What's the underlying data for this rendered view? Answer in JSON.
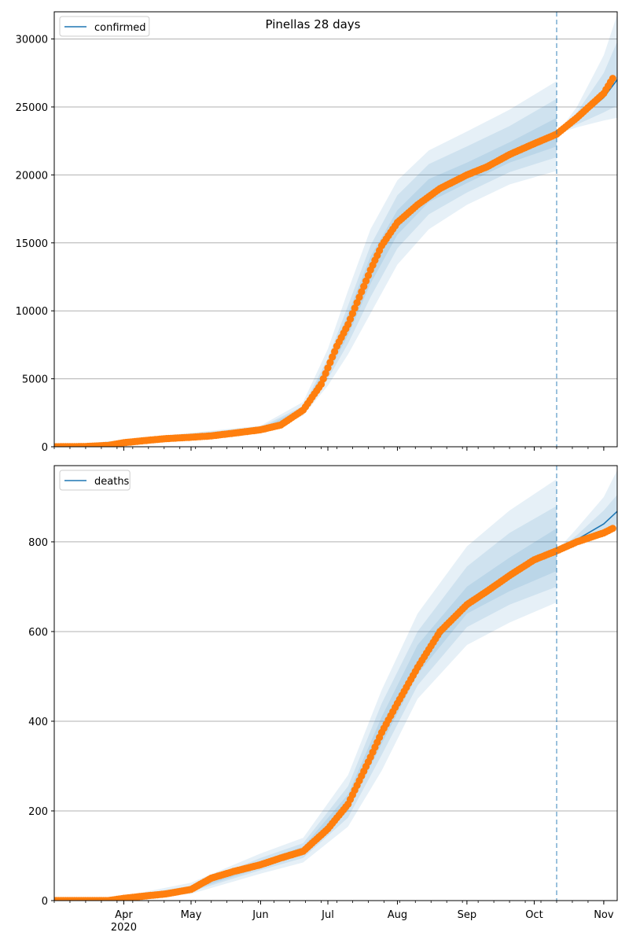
{
  "title": "Pinellas 28 days",
  "colors": {
    "model": "#1f77b4",
    "observed": "#ff7f0e",
    "band": "#1f77b4",
    "grid": "#b0b0b0",
    "marker_line": "#1f77b4"
  },
  "x_axis": {
    "range": [
      "2020-03-01",
      "2020-11-07"
    ],
    "tick_labels": [
      {
        "date": "2020-04-01",
        "label": "Apr",
        "sub": "2020"
      },
      {
        "date": "2020-05-01",
        "label": "May"
      },
      {
        "date": "2020-06-01",
        "label": "Jun"
      },
      {
        "date": "2020-07-01",
        "label": "Jul"
      },
      {
        "date": "2020-08-01",
        "label": "Aug"
      },
      {
        "date": "2020-09-01",
        "label": "Sep"
      },
      {
        "date": "2020-10-01",
        "label": "Oct"
      },
      {
        "date": "2020-11-01",
        "label": "Nov"
      }
    ]
  },
  "chart_data": [
    {
      "type": "line",
      "title": "Pinellas 28 days",
      "legend": [
        "confirmed"
      ],
      "legend_position": "top-left",
      "grid": "horizontal",
      "ylim": [
        0,
        32000
      ],
      "yticks": [
        0,
        5000,
        10000,
        15000,
        20000,
        25000,
        30000
      ],
      "forecast_start": "2020-10-11",
      "observed": {
        "x": [
          "2020-03-01",
          "2020-03-15",
          "2020-03-25",
          "2020-04-01",
          "2020-04-10",
          "2020-04-20",
          "2020-05-01",
          "2020-05-10",
          "2020-05-20",
          "2020-06-01",
          "2020-06-10",
          "2020-06-20",
          "2020-06-28",
          "2020-07-01",
          "2020-07-05",
          "2020-07-10",
          "2020-07-15",
          "2020-07-20",
          "2020-07-25",
          "2020-08-01",
          "2020-08-10",
          "2020-08-20",
          "2020-09-01",
          "2020-09-10",
          "2020-09-20",
          "2020-10-01",
          "2020-10-11",
          "2020-10-20",
          "2020-11-01",
          "2020-11-05"
        ],
        "y": [
          0,
          20,
          100,
          300,
          450,
          600,
          700,
          800,
          1000,
          1250,
          1600,
          2700,
          4600,
          5800,
          7400,
          9000,
          11000,
          13000,
          14800,
          16500,
          17800,
          19000,
          20000,
          20600,
          21500,
          22300,
          23000,
          24200,
          26000,
          27100
        ]
      },
      "model": {
        "x": [
          "2020-03-01",
          "2020-03-15",
          "2020-03-25",
          "2020-04-01",
          "2020-04-10",
          "2020-04-20",
          "2020-05-01",
          "2020-05-10",
          "2020-05-20",
          "2020-06-01",
          "2020-06-10",
          "2020-06-20",
          "2020-06-28",
          "2020-07-01",
          "2020-07-05",
          "2020-07-10",
          "2020-07-15",
          "2020-07-20",
          "2020-07-25",
          "2020-08-01",
          "2020-08-10",
          "2020-08-20",
          "2020-09-01",
          "2020-09-10",
          "2020-09-20",
          "2020-10-01",
          "2020-10-11",
          "2020-10-20",
          "2020-11-01",
          "2020-11-07"
        ],
        "y": [
          0,
          20,
          100,
          300,
          450,
          600,
          700,
          800,
          1000,
          1250,
          1600,
          2700,
          4600,
          5800,
          7300,
          9000,
          11000,
          13000,
          14800,
          16500,
          17800,
          19000,
          20000,
          20600,
          21500,
          22300,
          23000,
          24000,
          25700,
          27000
        ]
      },
      "bands": [
        {
          "x": [
            "2020-03-01",
            "2020-06-01",
            "2020-06-20",
            "2020-07-01",
            "2020-07-10",
            "2020-07-20",
            "2020-08-01",
            "2020-08-15",
            "2020-09-01",
            "2020-09-20",
            "2020-10-11"
          ],
          "lower": [
            0,
            1050,
            2300,
            4500,
            6800,
            9800,
            13400,
            16000,
            17800,
            19300,
            20300
          ],
          "upper": [
            0,
            1550,
            3300,
            7200,
            11500,
            16000,
            19600,
            21800,
            23200,
            24800,
            26900
          ]
        },
        {
          "x": [
            "2020-03-01",
            "2020-06-01",
            "2020-06-20",
            "2020-07-01",
            "2020-07-10",
            "2020-07-20",
            "2020-08-01",
            "2020-08-15",
            "2020-09-01",
            "2020-09-20",
            "2020-10-11"
          ],
          "lower": [
            0,
            1150,
            2450,
            5000,
            7600,
            11000,
            14600,
            17100,
            18700,
            20200,
            21300
          ],
          "upper": [
            0,
            1450,
            3000,
            6500,
            10400,
            14800,
            18500,
            20800,
            22100,
            23600,
            25600
          ]
        },
        {
          "x": [
            "2020-03-01",
            "2020-06-01",
            "2020-06-20",
            "2020-07-01",
            "2020-07-10",
            "2020-07-20",
            "2020-08-01",
            "2020-08-15",
            "2020-09-01",
            "2020-09-20",
            "2020-10-11"
          ],
          "lower": [
            0,
            1200,
            2550,
            5400,
            8200,
            12000,
            15600,
            18000,
            19400,
            20900,
            22100
          ],
          "upper": [
            0,
            1350,
            2850,
            6200,
            9800,
            14000,
            17400,
            19700,
            20900,
            22400,
            24200
          ]
        },
        {
          "x": [
            "2020-10-11",
            "2020-10-20",
            "2020-11-01",
            "2020-11-07"
          ],
          "lower": [
            23000,
            23500,
            24000,
            24200
          ],
          "upper": [
            23000,
            25000,
            28800,
            31800
          ]
        },
        {
          "x": [
            "2020-10-11",
            "2020-10-20",
            "2020-11-01",
            "2020-11-07"
          ],
          "lower": [
            23000,
            23700,
            24600,
            25100
          ],
          "upper": [
            23000,
            24600,
            27500,
            29800
          ]
        }
      ]
    },
    {
      "type": "line",
      "legend": [
        "deaths"
      ],
      "legend_position": "top-left",
      "grid": "horizontal",
      "ylim": [
        0,
        970
      ],
      "yticks": [
        0,
        200,
        400,
        600,
        800
      ],
      "forecast_start": "2020-10-11",
      "observed": {
        "x": [
          "2020-03-01",
          "2020-03-25",
          "2020-04-01",
          "2020-04-10",
          "2020-04-20",
          "2020-05-01",
          "2020-05-10",
          "2020-05-20",
          "2020-06-01",
          "2020-06-10",
          "2020-06-20",
          "2020-07-01",
          "2020-07-10",
          "2020-07-20",
          "2020-07-25",
          "2020-08-01",
          "2020-08-10",
          "2020-08-20",
          "2020-09-01",
          "2020-09-10",
          "2020-09-20",
          "2020-10-01",
          "2020-10-11",
          "2020-10-20",
          "2020-11-01",
          "2020-11-05"
        ],
        "y": [
          0,
          0,
          5,
          10,
          15,
          25,
          50,
          65,
          80,
          95,
          110,
          160,
          215,
          320,
          375,
          440,
          520,
          600,
          660,
          690,
          725,
          760,
          780,
          800,
          820,
          830
        ]
      },
      "model": {
        "x": [
          "2020-03-01",
          "2020-03-25",
          "2020-04-01",
          "2020-04-10",
          "2020-04-20",
          "2020-05-01",
          "2020-05-10",
          "2020-05-20",
          "2020-06-01",
          "2020-06-10",
          "2020-06-20",
          "2020-07-01",
          "2020-07-10",
          "2020-07-20",
          "2020-07-25",
          "2020-08-01",
          "2020-08-10",
          "2020-08-20",
          "2020-09-01",
          "2020-09-10",
          "2020-09-20",
          "2020-10-01",
          "2020-10-11",
          "2020-10-20",
          "2020-11-01",
          "2020-11-07"
        ],
        "y": [
          0,
          0,
          5,
          10,
          15,
          25,
          50,
          65,
          80,
          95,
          110,
          160,
          215,
          320,
          380,
          450,
          520,
          590,
          660,
          695,
          730,
          760,
          780,
          805,
          840,
          868
        ]
      },
      "bands": [
        {
          "x": [
            "2020-03-01",
            "2020-04-01",
            "2020-05-01",
            "2020-06-01",
            "2020-06-20",
            "2020-07-10",
            "2020-07-25",
            "2020-08-10",
            "2020-09-01",
            "2020-09-20",
            "2020-10-11"
          ],
          "lower": [
            0,
            3,
            15,
            60,
            85,
            165,
            290,
            450,
            570,
            620,
            665
          ],
          "upper": [
            0,
            10,
            40,
            105,
            140,
            280,
            470,
            640,
            790,
            870,
            940
          ]
        },
        {
          "x": [
            "2020-03-01",
            "2020-04-01",
            "2020-05-01",
            "2020-06-01",
            "2020-06-20",
            "2020-07-10",
            "2020-07-25",
            "2020-08-10",
            "2020-09-01",
            "2020-09-20",
            "2020-10-11"
          ],
          "lower": [
            0,
            4,
            20,
            68,
            95,
            185,
            325,
            480,
            610,
            660,
            700
          ],
          "upper": [
            0,
            8,
            33,
            95,
            128,
            255,
            440,
            600,
            745,
            820,
            880
          ]
        },
        {
          "x": [
            "2020-03-01",
            "2020-04-01",
            "2020-05-01",
            "2020-06-01",
            "2020-06-20",
            "2020-07-10",
            "2020-07-25",
            "2020-08-10",
            "2020-09-01",
            "2020-09-20",
            "2020-10-11"
          ],
          "lower": [
            0,
            5,
            23,
            73,
            102,
            200,
            350,
            505,
            640,
            690,
            735
          ],
          "upper": [
            0,
            7,
            29,
            88,
            120,
            237,
            410,
            570,
            700,
            765,
            830
          ]
        },
        {
          "x": [
            "2020-10-11",
            "2020-10-20",
            "2020-11-01",
            "2020-11-07"
          ],
          "lower": [
            780,
            795,
            815,
            825
          ],
          "upper": [
            780,
            830,
            900,
            960
          ]
        },
        {
          "x": [
            "2020-10-11",
            "2020-10-20",
            "2020-11-01",
            "2020-11-07"
          ],
          "lower": [
            780,
            800,
            825,
            840
          ],
          "upper": [
            780,
            815,
            870,
            905
          ]
        }
      ]
    }
  ]
}
